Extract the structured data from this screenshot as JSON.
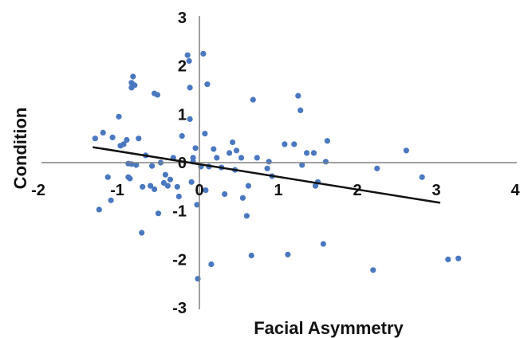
{
  "chart_data": {
    "type": "scatter",
    "title": "",
    "xlabel": "Facial Asymmetry",
    "ylabel": "Condition",
    "xlim": [
      -2,
      4
    ],
    "ylim": [
      -3,
      3
    ],
    "x_ticks": [
      "-2",
      "-1",
      "0",
      "1",
      "2",
      "3",
      "4"
    ],
    "y_ticks": [
      "3",
      "2",
      "1",
      "0",
      "-1",
      "-2",
      "-3"
    ],
    "grid": false,
    "legend": "none",
    "colors": {
      "points": "#4a78c0",
      "trend_line": "#111111",
      "axes": "#808080"
    },
    "points": [
      [
        -1.32,
        0.5
      ],
      [
        -1.27,
        -0.97
      ],
      [
        -1.22,
        0.62
      ],
      [
        -1.16,
        -0.3
      ],
      [
        -1.12,
        -0.78
      ],
      [
        -1.1,
        0.52
      ],
      [
        -1.02,
        0.95
      ],
      [
        -1.0,
        0.35
      ],
      [
        -0.96,
        0.38
      ],
      [
        -0.92,
        0.47
      ],
      [
        -0.9,
        -0.02
      ],
      [
        -0.86,
        1.65
      ],
      [
        -0.86,
        1.55
      ],
      [
        -0.84,
        1.78
      ],
      [
        -0.82,
        1.6
      ],
      [
        -0.9,
        -0.3
      ],
      [
        -0.86,
        -0.03
      ],
      [
        -0.88,
        -0.33
      ],
      [
        -0.8,
        -0.05
      ],
      [
        -0.77,
        0.5
      ],
      [
        -0.73,
        -1.45
      ],
      [
        -0.72,
        -0.5
      ],
      [
        -0.68,
        0.15
      ],
      [
        -0.62,
        -0.48
      ],
      [
        -0.6,
        -0.07
      ],
      [
        -0.57,
        -0.55
      ],
      [
        -0.57,
        1.43
      ],
      [
        -0.53,
        1.4
      ],
      [
        -0.52,
        -1.05
      ],
      [
        -0.49,
        0.0
      ],
      [
        -0.45,
        -0.42
      ],
      [
        -0.43,
        -0.25
      ],
      [
        -0.4,
        -0.48
      ],
      [
        -0.37,
        -0.35
      ],
      [
        -0.33,
        0.1
      ],
      [
        -0.28,
        -0.5
      ],
      [
        -0.26,
        -0.7
      ],
      [
        -0.22,
        0.55
      ],
      [
        -0.15,
        2.22
      ],
      [
        -0.13,
        2.1
      ],
      [
        -0.12,
        1.55
      ],
      [
        -0.12,
        0.9
      ],
      [
        -0.1,
        -0.4
      ],
      [
        -0.08,
        0.1
      ],
      [
        -0.08,
        0.02
      ],
      [
        -0.05,
        0.3
      ],
      [
        -0.03,
        -0.87
      ],
      [
        -0.02,
        -2.4
      ],
      [
        0.02,
        -0.08
      ],
      [
        0.05,
        2.25
      ],
      [
        0.07,
        0.6
      ],
      [
        0.08,
        -0.57
      ],
      [
        0.1,
        1.62
      ],
      [
        0.12,
        -0.08
      ],
      [
        0.15,
        -2.1
      ],
      [
        0.18,
        0.28
      ],
      [
        0.22,
        0.1
      ],
      [
        0.28,
        -0.1
      ],
      [
        0.32,
        -0.65
      ],
      [
        0.38,
        0.2
      ],
      [
        0.42,
        0.42
      ],
      [
        0.45,
        -0.15
      ],
      [
        0.47,
        0.25
      ],
      [
        0.53,
        0.1
      ],
      [
        0.55,
        -0.73
      ],
      [
        0.6,
        -1.1
      ],
      [
        0.62,
        -0.48
      ],
      [
        0.66,
        -1.92
      ],
      [
        0.68,
        1.3
      ],
      [
        0.73,
        0.1
      ],
      [
        0.86,
        -0.12
      ],
      [
        0.88,
        0.02
      ],
      [
        0.92,
        -0.28
      ],
      [
        1.08,
        0.38
      ],
      [
        1.12,
        -1.9
      ],
      [
        1.2,
        0.38
      ],
      [
        1.25,
        1.38
      ],
      [
        1.28,
        1.08
      ],
      [
        1.3,
        -0.05
      ],
      [
        1.36,
        0.2
      ],
      [
        1.45,
        0.2
      ],
      [
        1.47,
        -0.48
      ],
      [
        1.5,
        -0.4
      ],
      [
        1.57,
        -1.68
      ],
      [
        1.6,
        0.02
      ],
      [
        1.62,
        0.45
      ],
      [
        2.2,
        -2.22
      ],
      [
        2.25,
        -0.12
      ],
      [
        2.62,
        0.25
      ],
      [
        2.82,
        -0.3
      ],
      [
        3.15,
        -2.0
      ],
      [
        3.28,
        -1.98
      ]
    ],
    "trend_line": {
      "x": [
        -1.35,
        3.05
      ],
      "y": [
        0.32,
        -0.83
      ]
    }
  }
}
